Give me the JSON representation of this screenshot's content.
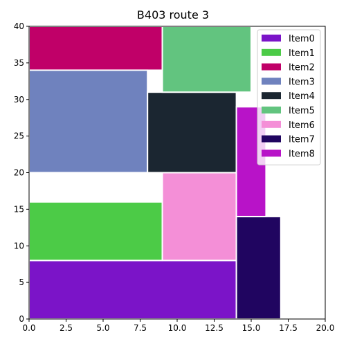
{
  "chart_data": {
    "type": "treemap-rectangles",
    "title": "B403 route 3",
    "xlabel": "",
    "ylabel": "",
    "xlim": [
      0,
      20
    ],
    "ylim": [
      0,
      40
    ],
    "x_ticks": [
      "0.0",
      "2.5",
      "5.0",
      "7.5",
      "10.0",
      "12.5",
      "15.0",
      "17.5",
      "20.0"
    ],
    "y_ticks": [
      "0",
      "5",
      "10",
      "15",
      "20",
      "25",
      "30",
      "35",
      "40"
    ],
    "legend_position": "top-right",
    "grid": false,
    "items": [
      {
        "name": "Item0",
        "color": "#7b14c8",
        "x0": 0,
        "x1": 14,
        "y0": 0,
        "y1": 8
      },
      {
        "name": "Item1",
        "color": "#4ccb47",
        "x0": 0,
        "x1": 9,
        "y0": 8,
        "y1": 16
      },
      {
        "name": "Item2",
        "color": "#c00068",
        "x0": 0,
        "x1": 9,
        "y0": 34,
        "y1": 40
      },
      {
        "name": "Item3",
        "color": "#6f82be",
        "x0": 0,
        "x1": 8,
        "y0": 20,
        "y1": 34
      },
      {
        "name": "Item4",
        "color": "#1b2631",
        "x0": 8,
        "x1": 14,
        "y0": 20,
        "y1": 31
      },
      {
        "name": "Item5",
        "color": "#62c47f",
        "x0": 9,
        "x1": 15,
        "y0": 31,
        "y1": 40
      },
      {
        "name": "Item6",
        "color": "#f48fd7",
        "x0": 9,
        "x1": 14,
        "y0": 8,
        "y1": 20
      },
      {
        "name": "Item7",
        "color": "#200560",
        "x0": 14,
        "x1": 17,
        "y0": 0,
        "y1": 14
      },
      {
        "name": "Item8",
        "color": "#b813c8",
        "x0": 14,
        "x1": 16,
        "y0": 14,
        "y1": 29
      }
    ]
  }
}
